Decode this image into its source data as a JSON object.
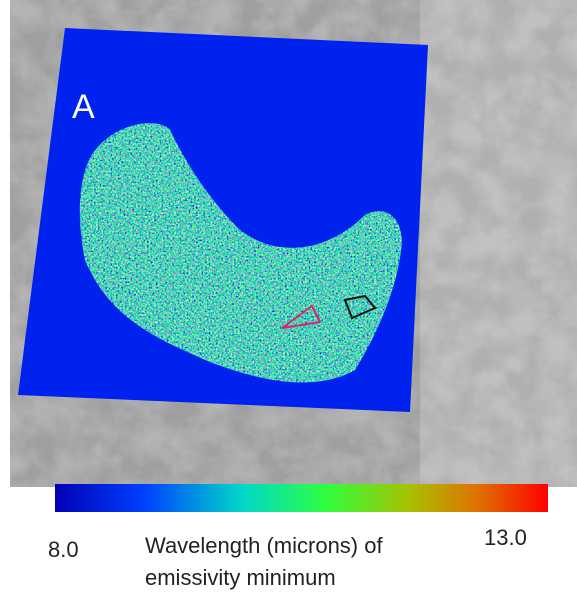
{
  "panel_label": "A",
  "colorbar": {
    "min_label": "8.0",
    "max_label": "13.0",
    "label": "Wavelength (microns) of emissivity minimum"
  }
}
